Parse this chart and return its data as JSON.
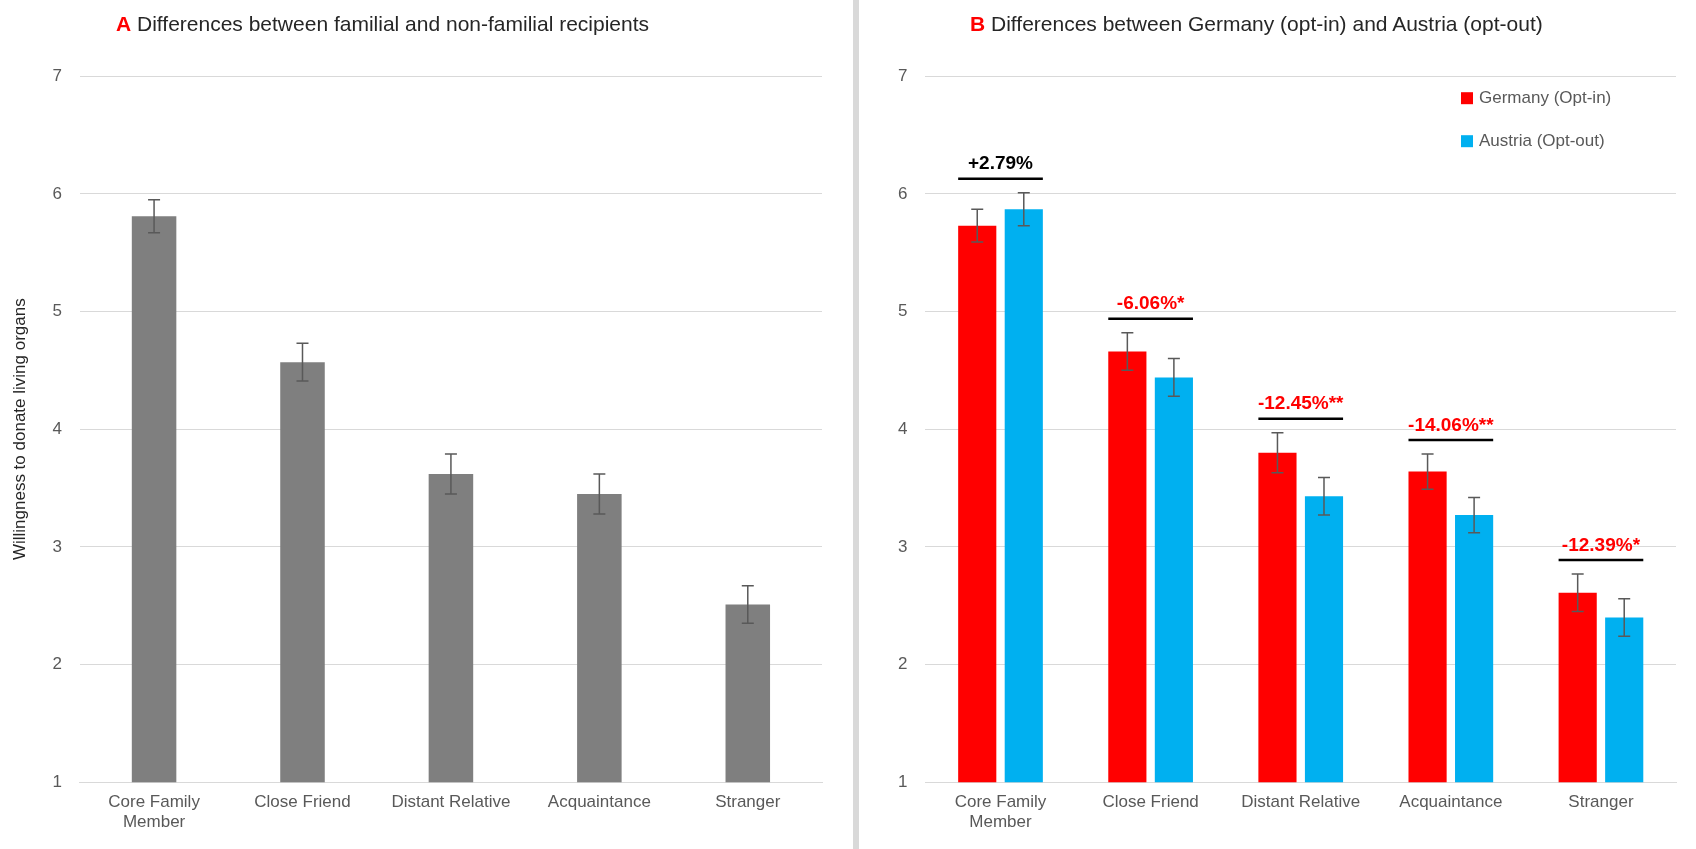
{
  "chart_data": [
    {
      "type": "bar",
      "title": "A Differences between familial and non-familial recipients",
      "ylabel": "Willingness to donate living organs",
      "categories": [
        "Core Family Member",
        "Close Friend",
        "Distant Relative",
        "Acquaintance",
        "Stranger"
      ],
      "series": [
        {
          "color": "#7f7f7f",
          "values": [
            5.81,
            4.57,
            3.62,
            3.45,
            2.51
          ],
          "errors": [
            0.14,
            0.16,
            0.17,
            0.17,
            0.16
          ]
        }
      ],
      "ylim": [
        1,
        7
      ],
      "yticks": [
        1,
        2,
        3,
        4,
        5,
        6,
        7
      ],
      "grid": "y",
      "legend": false
    },
    {
      "type": "bar",
      "title": "B Differences between Germany (opt-in) and Austria (opt-out)",
      "categories": [
        "Core Family Member",
        "Close Friend",
        "Distant Relative",
        "Acquaintance",
        "Stranger"
      ],
      "series": [
        {
          "name": "Germany (Opt-in)",
          "color": "#ff0000",
          "values": [
            5.73,
            4.66,
            3.8,
            3.64,
            2.61
          ],
          "errors": [
            0.14,
            0.16,
            0.17,
            0.15,
            0.16
          ]
        },
        {
          "name": "Austria (Opt-out)",
          "color": "#00b0f0",
          "values": [
            5.87,
            4.44,
            3.43,
            3.27,
            2.4
          ],
          "errors": [
            0.14,
            0.16,
            0.16,
            0.15,
            0.16
          ]
        }
      ],
      "annotations": [
        "+2.79%",
        "-6.06%*",
        "-12.45%**",
        "-14.06%**",
        "-12.39%*"
      ],
      "ylim": [
        1,
        7
      ],
      "yticks": [
        1,
        2,
        3,
        4,
        5,
        6,
        7
      ],
      "grid": "y",
      "legend": "top right"
    }
  ]
}
